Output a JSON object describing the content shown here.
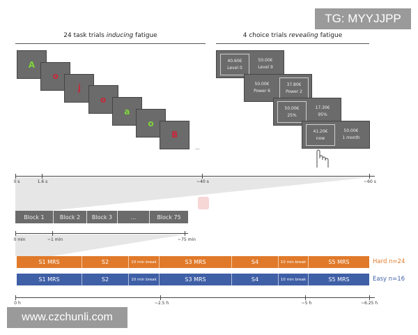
{
  "titles": {
    "left_pre": "24 task trials ",
    "left_em": "inducing",
    "left_post": " fatigue",
    "right_pre": "4 choice trials ",
    "right_em": "revealing",
    "right_post": " fatigue"
  },
  "stimuli": [
    {
      "letter": "A",
      "color": "#7fd63a"
    },
    {
      "letter": "o",
      "color": "#c8283a"
    },
    {
      "letter": "j",
      "color": "#c8283a"
    },
    {
      "letter": "o",
      "color": "#c8283a"
    },
    {
      "letter": "a",
      "color": "#7fd63a"
    },
    {
      "letter": "o",
      "color": "#7fd63a"
    },
    {
      "letter": "B",
      "color": "#c8283a"
    }
  ],
  "ellipsis": "...",
  "choices": [
    {
      "left": {
        "amount": "40.60€",
        "detail": "Level 0"
      },
      "right": {
        "amount": "50.00€",
        "detail": "Level 9"
      },
      "selected": "left"
    },
    {
      "left": {
        "amount": "50.00€",
        "detail": "Power 6"
      },
      "right": {
        "amount": "37.80€",
        "detail": "Power 2"
      },
      "selected": "right"
    },
    {
      "left": {
        "amount": "50.00€",
        "detail": "25%"
      },
      "right": {
        "amount": "17.30€",
        "detail": "95%"
      },
      "selected": "left"
    },
    {
      "left": {
        "amount": "41.20€",
        "detail": "now"
      },
      "right": {
        "amount": "50.00€",
        "detail": "1 month"
      },
      "selected": "left"
    }
  ],
  "axis_seconds": [
    "0 s",
    "1.6 s",
    "~40 s",
    "~60 s"
  ],
  "blocks": [
    "Block 1",
    "Block 2",
    "Block 3",
    "...",
    "Block 75"
  ],
  "axis_minutes": [
    "0 min",
    "~1 min",
    "~75 min"
  ],
  "sessions": [
    {
      "label": "Hard n=24",
      "color": "#e07a2a",
      "segments": [
        "S1 MRS",
        "S2",
        "10 min break",
        "S3 MRS",
        "S4",
        "10 min break",
        "S5 MRS"
      ]
    },
    {
      "label": "Easy n=16",
      "color": "#3f5fa6",
      "segments": [
        "S1 MRS",
        "S2",
        "10 min break",
        "S3 MRS",
        "S4",
        "10 min break",
        "S5 MRS"
      ]
    }
  ],
  "axis_hours": [
    "0 h",
    "~2.5 h",
    "~5 h",
    "~6.25 h"
  ],
  "watermarks": {
    "top": "TG: MYYJJPP",
    "bottom": "www.czchunli.com"
  }
}
